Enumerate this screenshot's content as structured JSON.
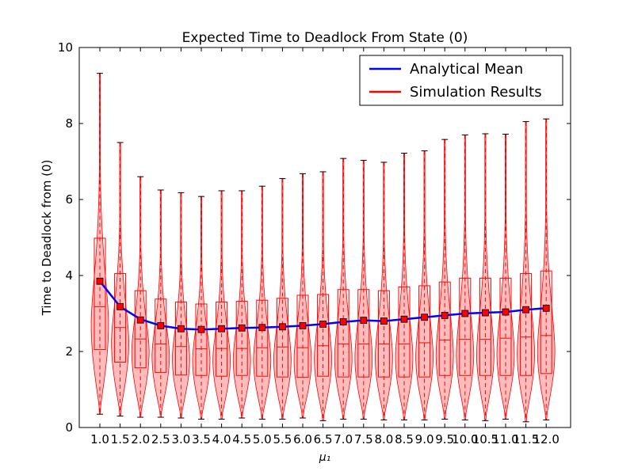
{
  "chart_data": {
    "type": "violin",
    "title": "Expected Time to Deadlock From State (0)",
    "xlabel": "μ₁",
    "ylabel": "Time to Deadlock from (0)",
    "ylim": [
      0,
      10
    ],
    "yticks": [
      "0",
      "2",
      "4",
      "6",
      "8",
      "10"
    ],
    "legend_placement": "top-right",
    "grid": false,
    "colors": {
      "analytical": "#0000ff",
      "simulation": "#ff0000",
      "violin_fill": "#ffb0b0"
    },
    "legend": [
      {
        "name": "Analytical Mean",
        "color": "#0000ff"
      },
      {
        "name": "Simulation Results",
        "color": "#ff0000"
      }
    ],
    "categories": [
      "1.0",
      "1.5",
      "2.0",
      "2.5",
      "3.0",
      "3.5",
      "4.0",
      "4.5",
      "5.0",
      "5.5",
      "6.0",
      "6.5",
      "7.0",
      "7.5",
      "8.0",
      "8.5",
      "9.0",
      "9.5",
      "10.0",
      "10.5",
      "11.0",
      "11.5",
      "12.0"
    ],
    "analytical_mean": [
      3.85,
      3.18,
      2.85,
      2.68,
      2.6,
      2.58,
      2.6,
      2.62,
      2.63,
      2.65,
      2.68,
      2.72,
      2.78,
      2.82,
      2.8,
      2.85,
      2.9,
      2.95,
      3.0,
      3.02,
      3.04,
      3.1,
      3.14
    ],
    "simulation": [
      {
        "min": 0.35,
        "q1": 2.05,
        "median": 3.18,
        "q3": 4.98,
        "max": 9.32,
        "mean": 3.85
      },
      {
        "min": 0.3,
        "q1": 1.72,
        "median": 2.63,
        "q3": 4.05,
        "max": 7.5,
        "mean": 3.18
      },
      {
        "min": 0.27,
        "q1": 1.57,
        "median": 2.33,
        "q3": 3.6,
        "max": 6.6,
        "mean": 2.83
      },
      {
        "min": 0.27,
        "q1": 1.45,
        "median": 2.2,
        "q3": 3.38,
        "max": 6.25,
        "mean": 2.68
      },
      {
        "min": 0.25,
        "q1": 1.38,
        "median": 2.13,
        "q3": 3.3,
        "max": 6.18,
        "mean": 2.6
      },
      {
        "min": 0.22,
        "q1": 1.37,
        "median": 2.07,
        "q3": 3.25,
        "max": 6.08,
        "mean": 2.58
      },
      {
        "min": 0.22,
        "q1": 1.35,
        "median": 2.08,
        "q3": 3.3,
        "max": 6.23,
        "mean": 2.6
      },
      {
        "min": 0.25,
        "q1": 1.37,
        "median": 2.08,
        "q3": 3.32,
        "max": 6.23,
        "mean": 2.62
      },
      {
        "min": 0.22,
        "q1": 1.35,
        "median": 2.1,
        "q3": 3.35,
        "max": 6.35,
        "mean": 2.63
      },
      {
        "min": 0.22,
        "q1": 1.33,
        "median": 2.12,
        "q3": 3.4,
        "max": 6.55,
        "mean": 2.65
      },
      {
        "min": 0.25,
        "q1": 1.32,
        "median": 2.1,
        "q3": 3.48,
        "max": 6.68,
        "mean": 2.68
      },
      {
        "min": 0.18,
        "q1": 1.35,
        "median": 2.15,
        "q3": 3.5,
        "max": 6.73,
        "mean": 2.72
      },
      {
        "min": 0.22,
        "q1": 1.33,
        "median": 2.2,
        "q3": 3.63,
        "max": 7.08,
        "mean": 2.78
      },
      {
        "min": 0.22,
        "q1": 1.33,
        "median": 2.2,
        "q3": 3.63,
        "max": 7.03,
        "mean": 2.82
      },
      {
        "min": 0.2,
        "q1": 1.33,
        "median": 2.2,
        "q3": 3.6,
        "max": 6.98,
        "mean": 2.8
      },
      {
        "min": 0.2,
        "q1": 1.33,
        "median": 2.2,
        "q3": 3.7,
        "max": 7.22,
        "mean": 2.85
      },
      {
        "min": 0.2,
        "q1": 1.33,
        "median": 2.23,
        "q3": 3.73,
        "max": 7.28,
        "mean": 2.9
      },
      {
        "min": 0.22,
        "q1": 1.37,
        "median": 2.3,
        "q3": 3.83,
        "max": 7.58,
        "mean": 2.95
      },
      {
        "min": 0.2,
        "q1": 1.37,
        "median": 2.32,
        "q3": 3.93,
        "max": 7.7,
        "mean": 3.0
      },
      {
        "min": 0.18,
        "q1": 1.37,
        "median": 2.32,
        "q3": 3.93,
        "max": 7.73,
        "mean": 3.02
      },
      {
        "min": 0.22,
        "q1": 1.37,
        "median": 2.35,
        "q3": 3.93,
        "max": 7.72,
        "mean": 3.04
      },
      {
        "min": 0.15,
        "q1": 1.37,
        "median": 2.38,
        "q3": 4.05,
        "max": 8.05,
        "mean": 3.1
      },
      {
        "min": 0.2,
        "q1": 1.42,
        "median": 2.42,
        "q3": 4.12,
        "max": 8.12,
        "mean": 3.14
      }
    ]
  }
}
